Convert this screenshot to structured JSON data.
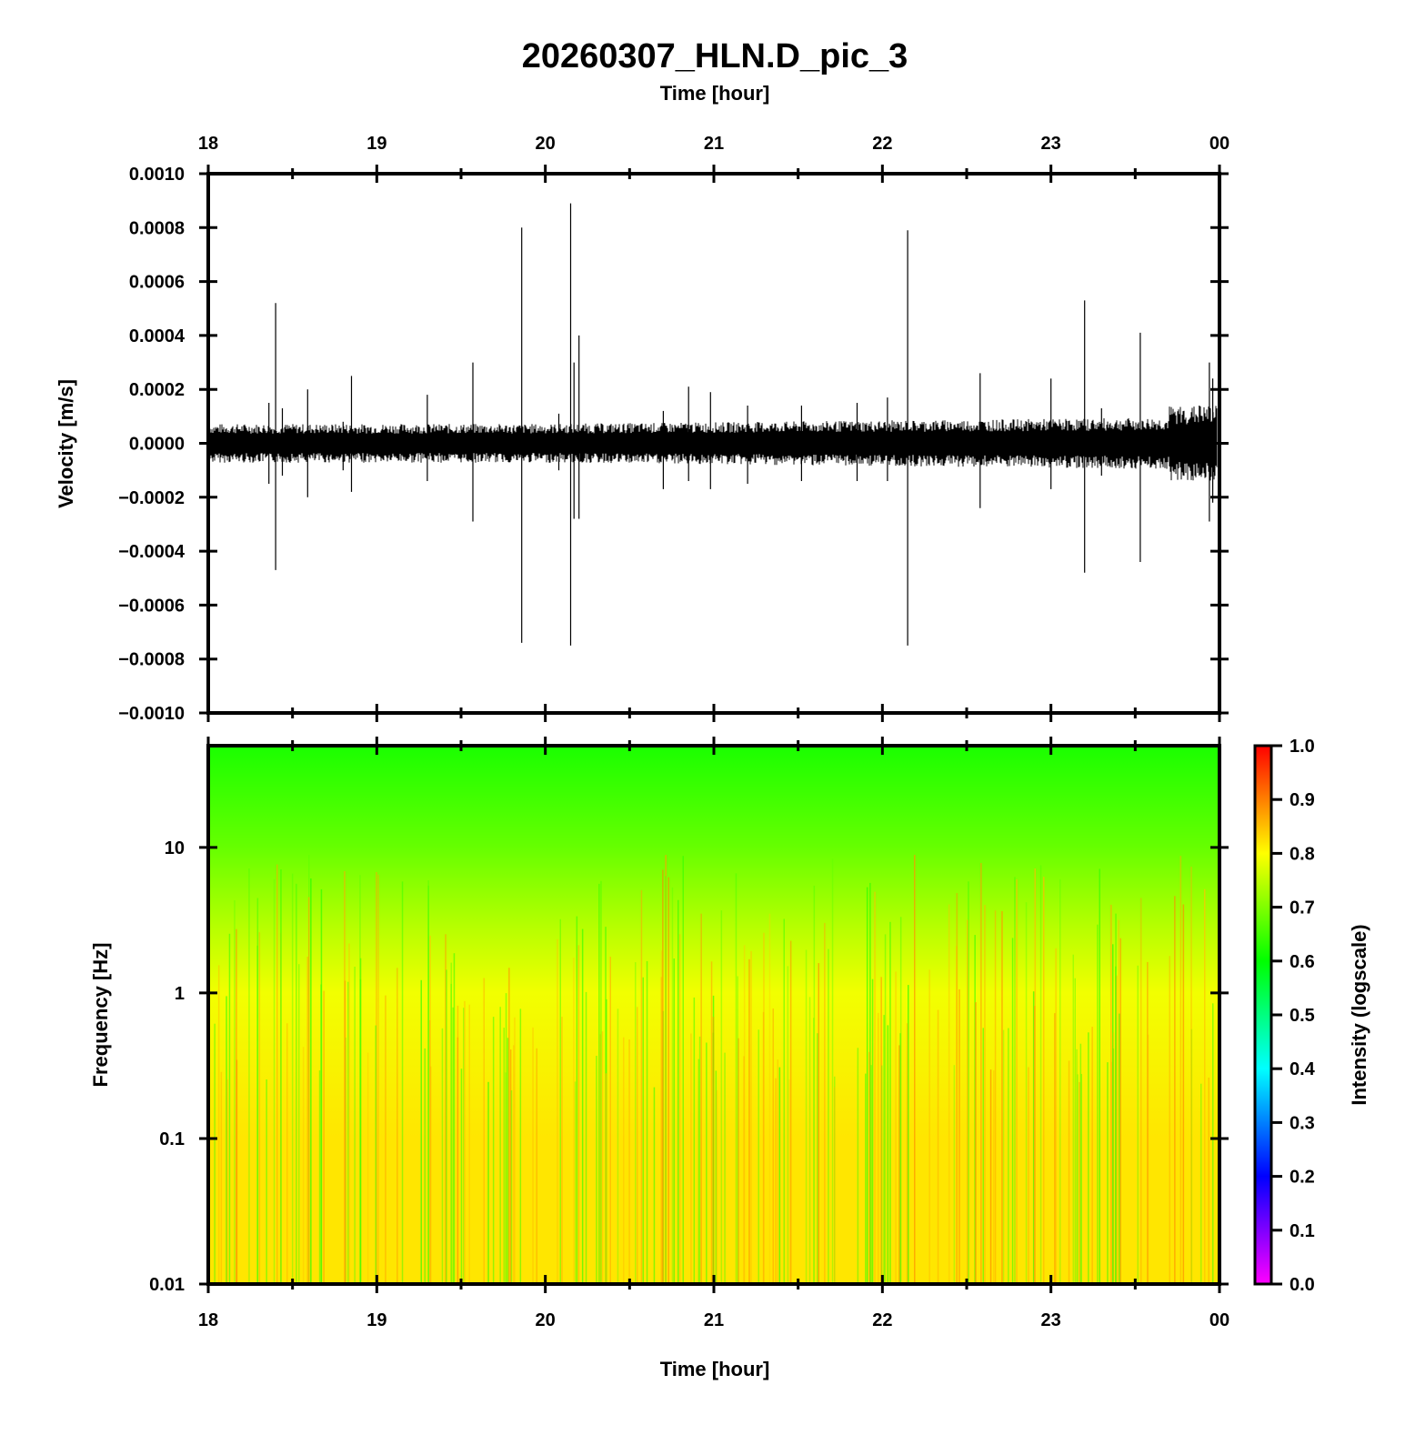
{
  "title": "20260307_HLN.D_pic_3",
  "chart_data": [
    {
      "type": "line",
      "panel": "seismogram",
      "title": "20260307_HLN.D_pic_3",
      "top_xlabel": "Time [hour]",
      "ylabel": "Velocity [m/s]",
      "x_tick_labels": [
        "18",
        "19",
        "20",
        "21",
        "22",
        "23",
        "00"
      ],
      "xlim": [
        18,
        24
      ],
      "ylim": [
        -0.001,
        0.001
      ],
      "y_tick_labels": [
        "0.0010",
        "0.0008",
        "0.0006",
        "0.0004",
        "0.0002",
        "0.0000",
        "−0.0002",
        "−0.0004",
        "−0.0006",
        "−0.0008",
        "−0.0010"
      ],
      "y_ticks": [
        0.001,
        0.0008,
        0.0006,
        0.0004,
        0.0002,
        0,
        -0.0002,
        -0.0004,
        -0.0006,
        -0.0008,
        -0.001
      ],
      "noise_amplitude": 6e-05,
      "spikes": [
        {
          "x": 18.36,
          "ymax": 0.00015,
          "ymin": -0.00015
        },
        {
          "x": 18.4,
          "ymax": 0.00052,
          "ymin": -0.00047
        },
        {
          "x": 18.44,
          "ymax": 0.00013,
          "ymin": -0.00012
        },
        {
          "x": 18.59,
          "ymax": 0.0002,
          "ymin": -0.0002
        },
        {
          "x": 18.8,
          "ymax": 8e-05,
          "ymin": -0.0001
        },
        {
          "x": 18.85,
          "ymax": 0.00025,
          "ymin": -0.00018
        },
        {
          "x": 19.3,
          "ymax": 0.00018,
          "ymin": -0.00014
        },
        {
          "x": 19.57,
          "ymax": 0.0003,
          "ymin": -0.00029
        },
        {
          "x": 19.86,
          "ymax": 0.0008,
          "ymin": -0.00074
        },
        {
          "x": 20.08,
          "ymax": 0.00011,
          "ymin": -0.0001
        },
        {
          "x": 20.15,
          "ymax": 0.00089,
          "ymin": -0.00075
        },
        {
          "x": 20.17,
          "ymax": 0.0003,
          "ymin": -0.00028
        },
        {
          "x": 20.2,
          "ymax": 0.0004,
          "ymin": -0.00028
        },
        {
          "x": 20.7,
          "ymax": 0.00012,
          "ymin": -0.00017
        },
        {
          "x": 20.85,
          "ymax": 0.00021,
          "ymin": -0.00014
        },
        {
          "x": 20.98,
          "ymax": 0.00019,
          "ymin": -0.00017
        },
        {
          "x": 21.2,
          "ymax": 0.00014,
          "ymin": -0.00015
        },
        {
          "x": 21.52,
          "ymax": 0.00014,
          "ymin": -0.00014
        },
        {
          "x": 21.85,
          "ymax": 0.00015,
          "ymin": -0.00014
        },
        {
          "x": 22.03,
          "ymax": 0.00017,
          "ymin": -0.00014
        },
        {
          "x": 22.15,
          "ymax": 0.00079,
          "ymin": -0.00075
        },
        {
          "x": 22.58,
          "ymax": 0.00026,
          "ymin": -0.00024
        },
        {
          "x": 23.0,
          "ymax": 0.00024,
          "ymin": -0.00017
        },
        {
          "x": 23.2,
          "ymax": 0.00053,
          "ymin": -0.00048
        },
        {
          "x": 23.3,
          "ymax": 0.00013,
          "ymin": -0.00012
        },
        {
          "x": 23.53,
          "ymax": 0.00041,
          "ymin": -0.00044
        },
        {
          "x": 23.88,
          "ymax": 0.00014,
          "ymin": -0.00012
        },
        {
          "x": 23.94,
          "ymax": 0.0003,
          "ymin": -0.00029
        },
        {
          "x": 23.96,
          "ymax": 0.00024,
          "ymin": -0.00022
        }
      ]
    },
    {
      "type": "heatmap",
      "panel": "spectrogram",
      "xlabel": "Time [hour]",
      "ylabel": "Frequency [Hz]",
      "x_tick_labels": [
        "18",
        "19",
        "20",
        "21",
        "22",
        "23",
        "00"
      ],
      "xlim": [
        18,
        24
      ],
      "y_scale": "log",
      "ylim": [
        0.01,
        50
      ],
      "y_tick_labels": [
        "10",
        "1",
        "0.1",
        "0.01"
      ],
      "y_ticks": [
        10,
        1,
        0.1,
        0.01
      ],
      "intensity_profile": [
        {
          "freq": 0.01,
          "intensity": 0.82
        },
        {
          "freq": 0.1,
          "intensity": 0.82
        },
        {
          "freq": 1,
          "intensity": 0.79
        },
        {
          "freq": 3,
          "intensity": 0.74
        },
        {
          "freq": 10,
          "intensity": 0.68
        },
        {
          "freq": 50,
          "intensity": 0.62
        }
      ],
      "colorbar": {
        "label": "Intensity (logscale)",
        "range": [
          0,
          1
        ],
        "tick_labels": [
          "1.0",
          "0.9",
          "0.8",
          "0.7",
          "0.6",
          "0.5",
          "0.4",
          "0.3",
          "0.2",
          "0.1",
          "0.0"
        ],
        "colors": [
          "#ff00ff",
          "#0000ff",
          "#00ffff",
          "#00ff00",
          "#ffff00",
          "#ff0000"
        ]
      }
    }
  ]
}
